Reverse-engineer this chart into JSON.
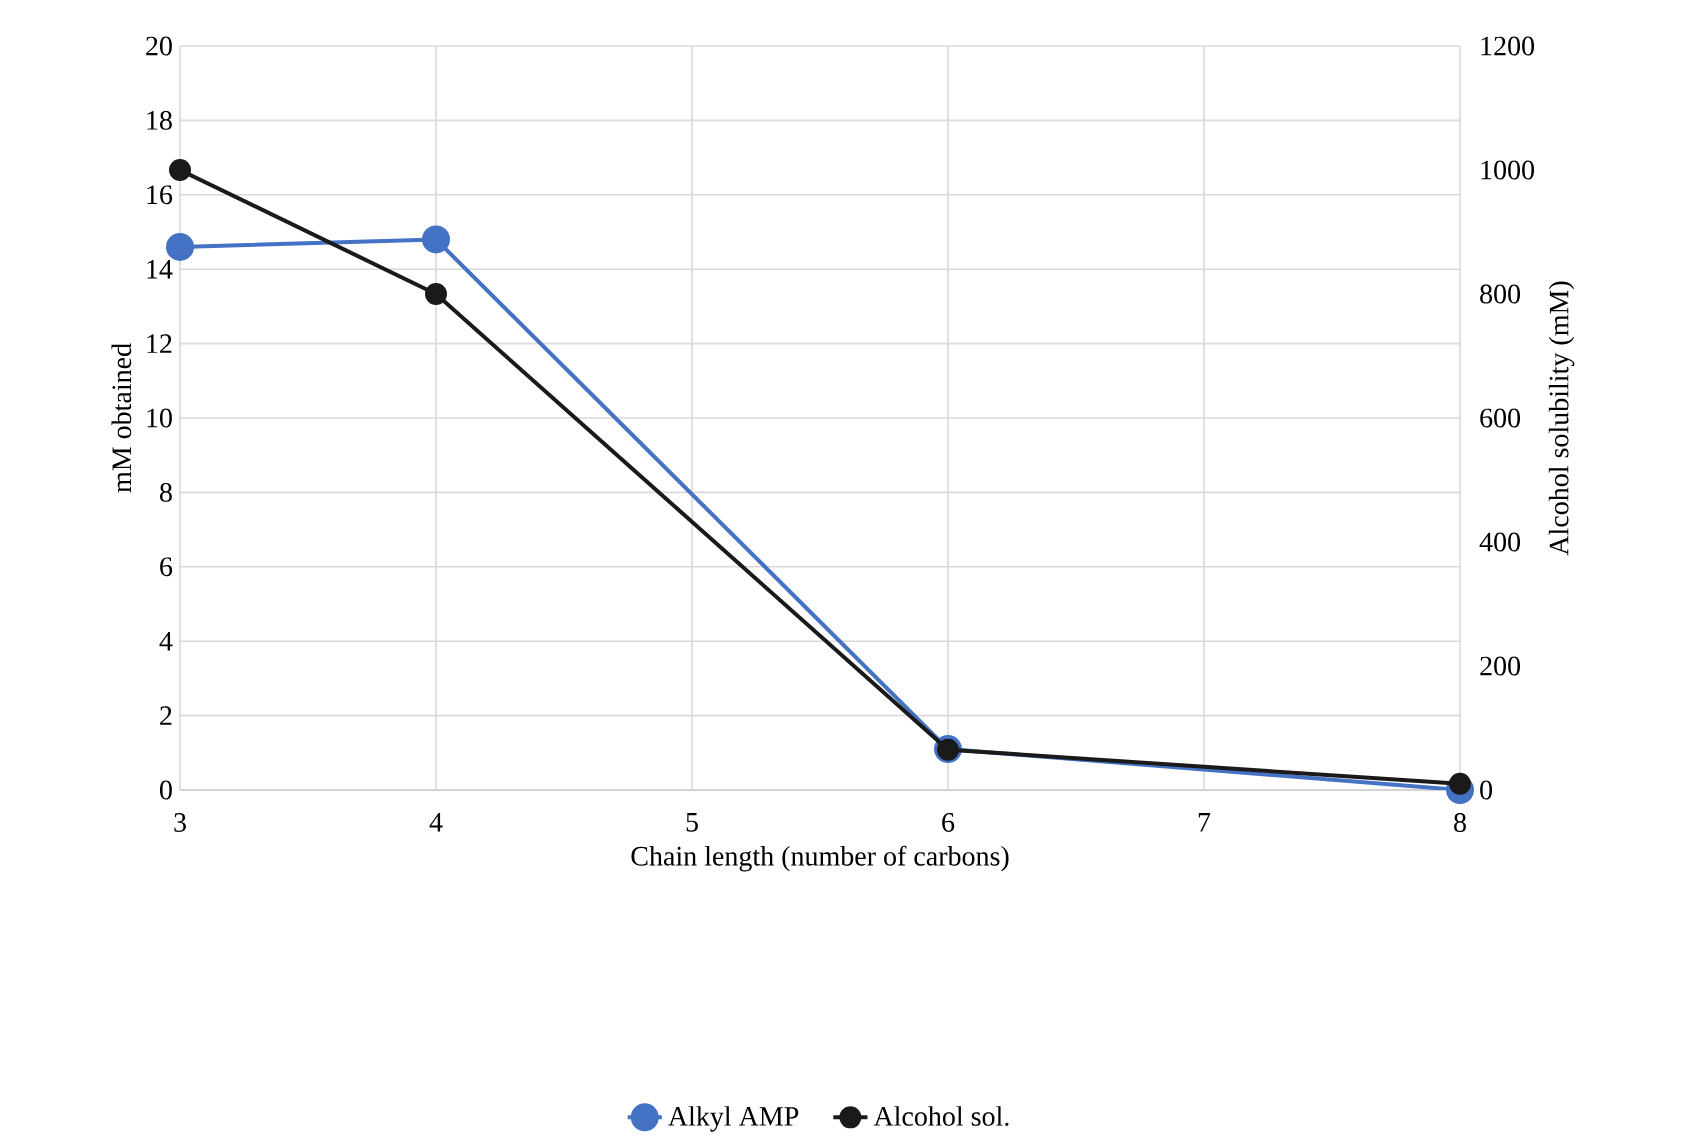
{
  "chart_data": {
    "type": "line",
    "xlabel": "Chain length (number of carbons)",
    "ylabel": "mM obtained",
    "y2label": "Alcohol solubility (mM)",
    "x": [
      3,
      4,
      6,
      8
    ],
    "series": [
      {
        "name": "Alkyl AMP",
        "color": "#4472c4",
        "values": [
          14.6,
          14.8,
          1.1,
          0
        ]
      },
      {
        "name": "Alcohol sol.",
        "color": "#1a1a1a",
        "values": [
          1000,
          800,
          65,
          10
        ],
        "axis": "y2"
      }
    ],
    "xlim": [
      3,
      8
    ],
    "xticks": [
      3,
      4,
      5,
      6,
      7,
      8
    ],
    "ylim": [
      0,
      20
    ],
    "yticks": [
      0,
      2,
      4,
      6,
      8,
      10,
      12,
      14,
      16,
      18,
      20
    ],
    "y2lim": [
      0,
      1200
    ],
    "y2ticks": [
      0,
      200,
      400,
      600,
      800,
      1000,
      1200
    ],
    "grid": true,
    "legend": "bottom",
    "marker": "circle"
  }
}
